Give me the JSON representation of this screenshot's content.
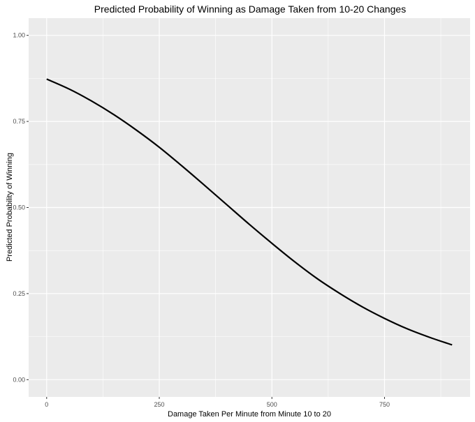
{
  "chart_data": {
    "type": "line",
    "title": "Predicted Probability of Winning as Damage Taken from 10-20 Changes",
    "xlabel": "Damage Taken Per Minute from Minute 10 to 20",
    "ylabel": "Predicted Probability of Winning",
    "xlim": [
      -40,
      940
    ],
    "ylim": [
      -0.05,
      1.05
    ],
    "x_ticks": [
      0,
      250,
      500,
      750
    ],
    "x_tick_labels": [
      "0",
      "250",
      "500",
      "750"
    ],
    "x_minor_ticks": [
      125,
      375,
      625,
      875
    ],
    "y_ticks": [
      0,
      0.25,
      0.5,
      0.75,
      1.0
    ],
    "y_tick_labels": [
      "0.00",
      "0.25",
      "0.50",
      "0.75",
      "1.00"
    ],
    "y_minor_ticks": [
      0.125,
      0.375,
      0.625,
      0.875
    ],
    "grid": true,
    "legend": "none",
    "colors": {
      "panel": "#ebebeb",
      "grid": "#ffffff",
      "line": "#000000",
      "tick_text": "#4d4d4d"
    },
    "series": [
      {
        "x": [
          0,
          50,
          100,
          150,
          200,
          250,
          300,
          350,
          400,
          450,
          500,
          550,
          600,
          650,
          700,
          750,
          800,
          850,
          900
        ],
        "values": [
          0.873,
          0.844,
          0.809,
          0.769,
          0.724,
          0.675,
          0.621,
          0.565,
          0.508,
          0.451,
          0.396,
          0.343,
          0.294,
          0.251,
          0.212,
          0.178,
          0.148,
          0.123,
          0.101
        ]
      }
    ]
  }
}
